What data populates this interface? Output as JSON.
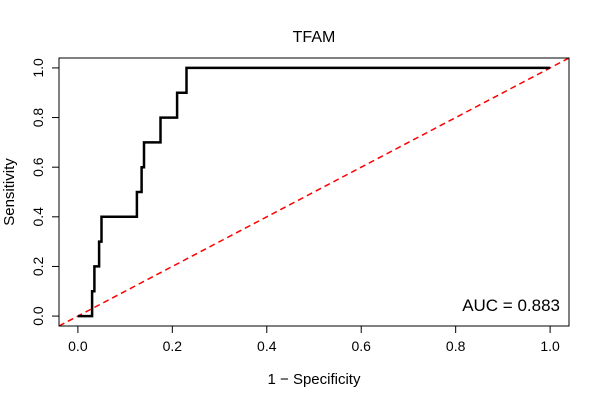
{
  "chart_data": {
    "type": "line",
    "title": "TFAM",
    "xlabel": "1 − Specificity",
    "ylabel": "Sensitivity",
    "xlim": [
      -0.04,
      1.04
    ],
    "ylim": [
      -0.04,
      1.04
    ],
    "xticks": [
      0.0,
      0.2,
      0.4,
      0.6,
      0.8,
      1.0
    ],
    "yticks": [
      0.0,
      0.2,
      0.4,
      0.6,
      0.8,
      1.0
    ],
    "tick_labels_x": [
      "0.0",
      "0.2",
      "0.4",
      "0.6",
      "0.8",
      "1.0"
    ],
    "tick_labels_y": [
      "0.0",
      "0.2",
      "0.4",
      "0.6",
      "0.8",
      "1.0"
    ],
    "grid": false,
    "annotation": "AUC = 0.883",
    "series": [
      {
        "color": "#000000",
        "x": [
          0.0,
          0.03,
          0.03,
          0.035,
          0.035,
          0.045,
          0.045,
          0.05,
          0.05,
          0.125,
          0.125,
          0.135,
          0.135,
          0.14,
          0.14,
          0.175,
          0.175,
          0.21,
          0.21,
          0.23,
          0.23,
          1.0
        ],
        "y": [
          0.0,
          0.0,
          0.1,
          0.1,
          0.2,
          0.2,
          0.3,
          0.3,
          0.4,
          0.4,
          0.5,
          0.5,
          0.6,
          0.6,
          0.7,
          0.7,
          0.8,
          0.8,
          0.9,
          0.9,
          1.0,
          1.0
        ]
      },
      {
        "color": "#ff0000",
        "dashed": true,
        "x": [
          -0.04,
          1.04
        ],
        "y": [
          -0.04,
          1.04
        ]
      }
    ]
  }
}
